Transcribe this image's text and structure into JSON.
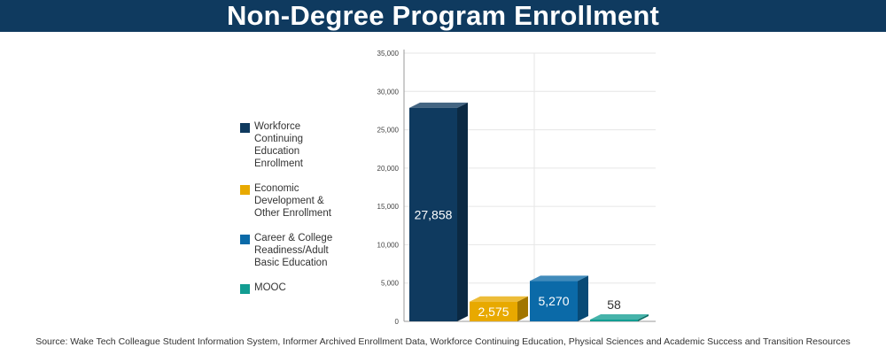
{
  "title": "Non-Degree Program Enrollment",
  "source": "Source: Wake Tech Colleague Student Information System, Informer Archived Enrollment Data, Workforce Continuing Education, Physical Sciences and Academic Success and Transition Resources",
  "legend": [
    {
      "label": "Workforce Continuing Education Enrollment",
      "color": "#0f3a5f"
    },
    {
      "label": "Economic Development & Other Enrollment",
      "color": "#e8a900"
    },
    {
      "label": "Career & College Readiness/Adult Basic Education",
      "color": "#0b6aa8"
    },
    {
      "label": "MOOC",
      "color": "#129d92"
    }
  ],
  "chart_data": {
    "type": "bar",
    "categories": [
      "Workforce Continuing Education Enrollment",
      "Economic Development & Other Enrollment",
      "Career & College Readiness/Adult Basic Education",
      "MOOC"
    ],
    "values": [
      27858,
      2575,
      5270,
      58
    ],
    "data_labels": [
      "27,858",
      "2,575",
      "5,270",
      "58"
    ],
    "colors": [
      "#0f3a5f",
      "#e8a900",
      "#0b6aa8",
      "#129d92"
    ],
    "yticks": [
      "0",
      "5,000",
      "10,000",
      "15,000",
      "20,000",
      "25,000",
      "30,000",
      "35,000"
    ],
    "ylim": [
      0,
      35000
    ],
    "grid": true,
    "legend_position": "left"
  }
}
